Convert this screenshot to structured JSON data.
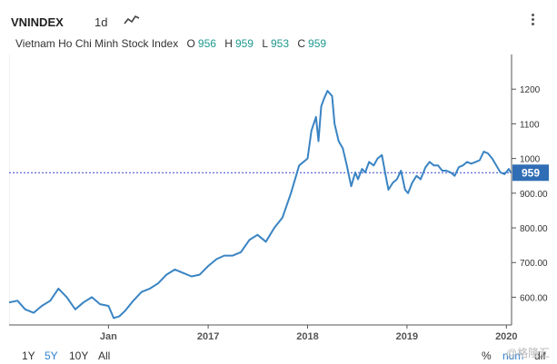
{
  "header": {
    "symbol": "VNINDEX",
    "interval": "1d",
    "chart_type_icon": "line-chart-icon",
    "menu_icon": "more-vertical-icon"
  },
  "legend": {
    "name": "Vietnam Ho Chi Minh Stock Index",
    "open_label": "O",
    "open_value": "956",
    "high_label": "H",
    "high_value": "959",
    "low_label": "L",
    "low_value": "953",
    "close_label": "C",
    "close_value": "959"
  },
  "footer": {
    "ranges": [
      {
        "label": "1Y",
        "active": false
      },
      {
        "label": "5Y",
        "active": true
      },
      {
        "label": "10Y",
        "active": false
      },
      {
        "label": "All",
        "active": false
      }
    ],
    "percent_label": "%",
    "num_label": "num",
    "dif_label": "dif",
    "watermark": "@格隆汇"
  },
  "colors": {
    "line": "#3a84c3",
    "price_tag": "#2f6db5",
    "reference_line": "#3344cc",
    "accent": "#2f80d0",
    "legend_value": "#1e9a8f"
  },
  "chart_data": {
    "type": "line",
    "title": "",
    "xlabel": "",
    "ylabel": "",
    "ylim": [
      520,
      1300
    ],
    "y_ticks": [
      "600.00",
      "700.00",
      "800.00",
      "900.00",
      "1000",
      "1100",
      "1200"
    ],
    "y_tick_values": [
      600,
      700,
      800,
      900,
      1000,
      1100,
      1200
    ],
    "x_ticks": [
      "Jan",
      "2017",
      "2018",
      "2019",
      "2020"
    ],
    "x_tick_values": [
      "2016-01-01",
      "2017-01-01",
      "2018-01-01",
      "2019-01-01",
      "2020-01-01"
    ],
    "xlim": [
      "2015-01-01",
      "2020-01-20"
    ],
    "last_price": 959,
    "last_price_label": "959",
    "series": [
      {
        "x": [
          "2015-01-01",
          "2015-02-01",
          "2015-03-01",
          "2015-04-01",
          "2015-05-01",
          "2015-06-01",
          "2015-07-01",
          "2015-08-01",
          "2015-09-01",
          "2015-10-01",
          "2015-11-01",
          "2015-12-01",
          "2016-01-01",
          "2016-01-20",
          "2016-02-10",
          "2016-03-01",
          "2016-04-01",
          "2016-05-01",
          "2016-06-01",
          "2016-07-01",
          "2016-08-01",
          "2016-09-01",
          "2016-10-01",
          "2016-11-01",
          "2016-12-01",
          "2017-01-01",
          "2017-02-01",
          "2017-03-01",
          "2017-04-01",
          "2017-05-01",
          "2017-06-01",
          "2017-07-01",
          "2017-08-01",
          "2017-09-01",
          "2017-10-01",
          "2017-11-01",
          "2017-12-01",
          "2018-01-01",
          "2018-01-15",
          "2018-02-01",
          "2018-02-10",
          "2018-02-20",
          "2018-03-01",
          "2018-03-15",
          "2018-04-01",
          "2018-04-10",
          "2018-04-25",
          "2018-05-10",
          "2018-05-25",
          "2018-06-10",
          "2018-06-25",
          "2018-07-05",
          "2018-07-20",
          "2018-08-01",
          "2018-08-15",
          "2018-09-01",
          "2018-09-15",
          "2018-10-01",
          "2018-10-15",
          "2018-10-25",
          "2018-11-10",
          "2018-11-25",
          "2018-12-10",
          "2018-12-25",
          "2019-01-05",
          "2019-01-20",
          "2019-02-05",
          "2019-02-20",
          "2019-03-10",
          "2019-03-25",
          "2019-04-10",
          "2019-04-25",
          "2019-05-10",
          "2019-05-25",
          "2019-06-10",
          "2019-06-25",
          "2019-07-10",
          "2019-07-25",
          "2019-08-10",
          "2019-08-25",
          "2019-09-10",
          "2019-09-25",
          "2019-10-10",
          "2019-10-25",
          "2019-11-10",
          "2019-11-25",
          "2019-12-10",
          "2019-12-25",
          "2020-01-10",
          "2020-01-17"
        ],
        "y": [
          585,
          590,
          565,
          555,
          575,
          590,
          625,
          600,
          565,
          585,
          600,
          580,
          575,
          540,
          545,
          560,
          590,
          615,
          625,
          640,
          665,
          680,
          670,
          660,
          665,
          690,
          710,
          720,
          720,
          730,
          765,
          780,
          760,
          800,
          830,
          900,
          980,
          1000,
          1080,
          1120,
          1050,
          1150,
          1170,
          1195,
          1180,
          1100,
          1050,
          1030,
          980,
          920,
          960,
          940,
          970,
          960,
          990,
          980,
          1000,
          1010,
          950,
          910,
          930,
          940,
          965,
          910,
          900,
          930,
          950,
          940,
          975,
          990,
          980,
          980,
          965,
          965,
          960,
          950,
          975,
          980,
          990,
          985,
          990,
          995,
          1020,
          1015,
          1000,
          980,
          960,
          955,
          970,
          959
        ]
      }
    ]
  }
}
